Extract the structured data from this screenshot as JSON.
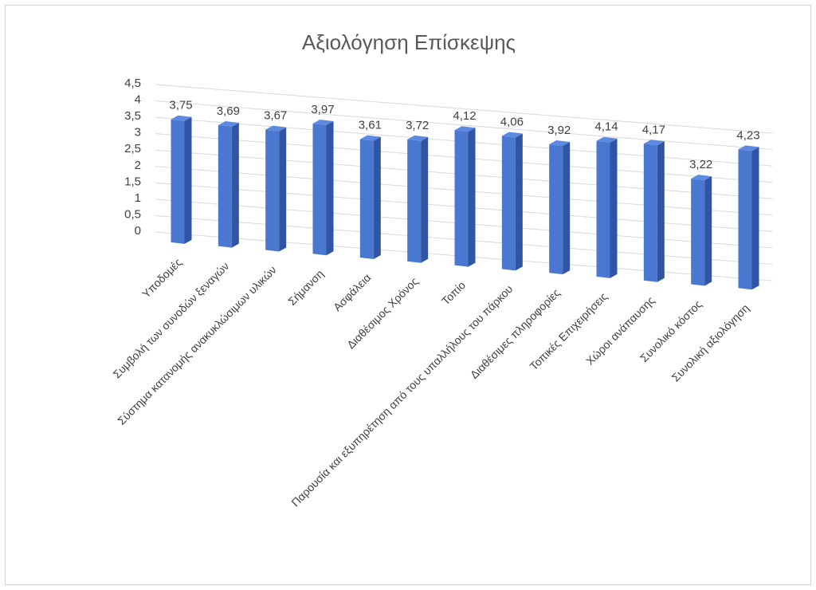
{
  "chart_data": {
    "type": "bar",
    "title": "Αξιολόγηση Επίσκεψης",
    "categories": [
      "Υποδομές",
      "Συμβολή των συνοδών ξεναγών",
      "Σύστημα κατανομής ανακυκλώσιμων υλικών",
      "Σήμανση",
      "Ασφάλεια",
      "Διαθέσιμος Χρόνος",
      "Τοπίο",
      "Παρουσία και εξυπηρέτηση από τους υπαλλήλους του πάρκου",
      "Διαθέσιμες πληροφορίες",
      "Τοπικές Επιχειρήσεις",
      "Χώροι ανάπαυσης",
      "Συνολικό κόστος",
      "Συνολική αξιολόγηση"
    ],
    "values": [
      3.75,
      3.69,
      3.67,
      3.97,
      3.61,
      3.72,
      4.12,
      4.06,
      3.92,
      4.14,
      4.17,
      3.22,
      4.23
    ],
    "value_labels": [
      "3,75",
      "3,69",
      "3,67",
      "3,97",
      "3,61",
      "3,72",
      "4,12",
      "4,06",
      "3,92",
      "4,14",
      "4,17",
      "3,22",
      "4,23"
    ],
    "yticks": [
      "0",
      "0,5",
      "1",
      "1,5",
      "2",
      "2,5",
      "3",
      "3,5",
      "4",
      "4,5"
    ],
    "ylim": [
      0,
      4.5
    ],
    "grid": true,
    "style": "3d-column",
    "bar_color": "#4472c4"
  }
}
